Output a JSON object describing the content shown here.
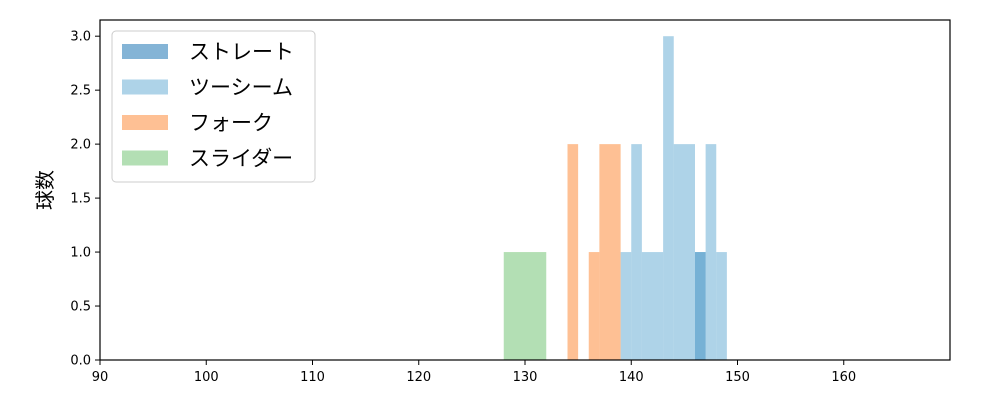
{
  "chart_data": {
    "type": "bar",
    "title": "",
    "xlabel": "",
    "ylabel": "球数",
    "xlim": [
      90,
      170
    ],
    "ylim": [
      0,
      3.15
    ],
    "x_ticks": [
      90,
      100,
      110,
      120,
      130,
      140,
      150,
      160
    ],
    "y_ticks": [
      0.0,
      0.5,
      1.0,
      1.5,
      2.0,
      2.5,
      3.0
    ],
    "y_tick_labels": [
      "0.0",
      "0.5",
      "1.0",
      "1.5",
      "2.0",
      "2.5",
      "3.0"
    ],
    "grid": false,
    "legend_position": "top-left",
    "series": [
      {
        "name": "ストレート",
        "color": "#1f77b4",
        "bins": [
          {
            "x0": 146.0,
            "x1": 147.0,
            "count": 1
          }
        ]
      },
      {
        "name": "ツーシーム",
        "color": "#6baed6",
        "bins": [
          {
            "x0": 139.0,
            "x1": 140.0,
            "count": 1
          },
          {
            "x0": 140.0,
            "x1": 141.0,
            "count": 2
          },
          {
            "x0": 141.0,
            "x1": 143.0,
            "count": 1
          },
          {
            "x0": 143.0,
            "x1": 144.0,
            "count": 3
          },
          {
            "x0": 144.0,
            "x1": 146.0,
            "count": 2
          },
          {
            "x0": 146.0,
            "x1": 147.0,
            "count": 1
          },
          {
            "x0": 147.0,
            "x1": 148.0,
            "count": 2
          },
          {
            "x0": 148.0,
            "x1": 149.0,
            "count": 1
          }
        ]
      },
      {
        "name": "フォーク",
        "color": "#fd8d3c",
        "bins": [
          {
            "x0": 134.0,
            "x1": 135.0,
            "count": 2
          },
          {
            "x0": 136.0,
            "x1": 137.0,
            "count": 1
          },
          {
            "x0": 137.0,
            "x1": 139.0,
            "count": 2
          }
        ]
      },
      {
        "name": "スライダー",
        "color": "#74c476",
        "bins": [
          {
            "x0": 128.0,
            "x1": 132.0,
            "count": 1
          }
        ]
      }
    ]
  }
}
